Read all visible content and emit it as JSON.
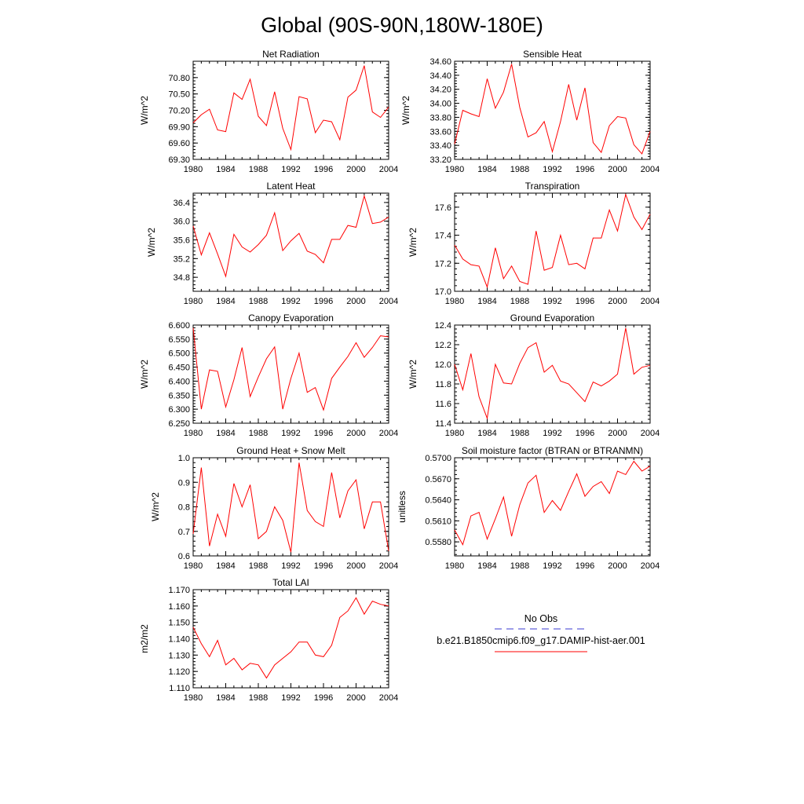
{
  "page": {
    "title": "Global (90S-90N,180W-180E)"
  },
  "legend": {
    "entries": [
      {
        "label": "No Obs",
        "color": "#3a3ad0",
        "dash": true
      },
      {
        "label": "b.e21.B1850cmip6.f09_g17.DAMIP-hist-aer.001",
        "color": "#ff0000",
        "dash": false
      }
    ]
  },
  "chart_data": [
    {
      "type": "line",
      "title": "Net Radiation",
      "xlabel": "",
      "ylabel": "W/m^2",
      "xlim": [
        1980,
        2004
      ],
      "ylim": [
        69.3,
        71.1
      ],
      "xticks": [
        "1980",
        "1984",
        "1988",
        "1992",
        "1996",
        "2000",
        "2004"
      ],
      "yticks": [
        "69.30",
        "69.60",
        "69.90",
        "70.20",
        "70.50",
        "70.80"
      ],
      "x": [
        1980,
        1981,
        1982,
        1983,
        1984,
        1985,
        1986,
        1987,
        1988,
        1989,
        1990,
        1991,
        1992,
        1993,
        1994,
        1995,
        1996,
        1997,
        1998,
        1999,
        2000,
        2001,
        2002,
        2003,
        2004
      ],
      "series": [
        {
          "color": "#ff0000",
          "values": [
            69.97,
            70.12,
            70.22,
            69.84,
            69.81,
            70.52,
            70.4,
            70.77,
            70.09,
            69.92,
            70.54,
            69.87,
            69.48,
            70.45,
            70.41,
            69.79,
            70.02,
            69.99,
            69.66,
            70.44,
            70.57,
            71.02,
            70.17,
            70.07,
            70.26
          ]
        }
      ]
    },
    {
      "type": "line",
      "title": "Sensible Heat",
      "xlabel": "",
      "ylabel": "W/m^2",
      "xlim": [
        1980,
        2004
      ],
      "ylim": [
        33.2,
        34.6
      ],
      "xticks": [
        "1980",
        "1984",
        "1988",
        "1992",
        "1996",
        "2000",
        "2004"
      ],
      "yticks": [
        "33.20",
        "33.40",
        "33.60",
        "33.80",
        "34.00",
        "34.20",
        "34.40",
        "34.60"
      ],
      "x": [
        1980,
        1981,
        1982,
        1983,
        1984,
        1985,
        1986,
        1987,
        1988,
        1989,
        1990,
        1991,
        1992,
        1993,
        1994,
        1995,
        1996,
        1997,
        1998,
        1999,
        2000,
        2001,
        2002,
        2003,
        2004
      ],
      "series": [
        {
          "color": "#ff0000",
          "values": [
            33.42,
            33.9,
            33.85,
            33.81,
            34.35,
            33.93,
            34.16,
            34.56,
            33.94,
            33.52,
            33.58,
            33.74,
            33.31,
            33.74,
            34.27,
            33.76,
            34.22,
            33.44,
            33.3,
            33.68,
            33.81,
            33.79,
            33.41,
            33.28,
            33.6
          ]
        }
      ]
    },
    {
      "type": "line",
      "title": "Latent Heat",
      "xlabel": "",
      "ylabel": "W/m^2",
      "xlim": [
        1980,
        2004
      ],
      "ylim": [
        34.5,
        36.6
      ],
      "xticks": [
        "1980",
        "1984",
        "1988",
        "1992",
        "1996",
        "2000",
        "2004"
      ],
      "yticks": [
        "34.8",
        "35.2",
        "35.6",
        "36.0",
        "36.4"
      ],
      "x": [
        1980,
        1981,
        1982,
        1983,
        1984,
        1985,
        1986,
        1987,
        1988,
        1989,
        1990,
        1991,
        1992,
        1993,
        1994,
        1995,
        1996,
        1997,
        1998,
        1999,
        2000,
        2001,
        2002,
        2003,
        2004
      ],
      "series": [
        {
          "color": "#ff0000",
          "values": [
            35.9,
            35.28,
            35.75,
            35.3,
            34.82,
            35.72,
            35.45,
            35.34,
            35.5,
            35.7,
            36.18,
            35.37,
            35.58,
            35.74,
            35.36,
            35.29,
            35.11,
            35.61,
            35.61,
            35.91,
            35.87,
            36.54,
            35.95,
            35.98,
            36.09
          ]
        }
      ]
    },
    {
      "type": "line",
      "title": "Transpiration",
      "xlabel": "",
      "ylabel": "W/m^2",
      "xlim": [
        1980,
        2004
      ],
      "ylim": [
        17.0,
        17.7
      ],
      "xticks": [
        "1980",
        "1984",
        "1988",
        "1992",
        "1996",
        "2000",
        "2004"
      ],
      "yticks": [
        "17.0",
        "17.2",
        "17.4",
        "17.6"
      ],
      "x": [
        1980,
        1981,
        1982,
        1983,
        1984,
        1985,
        1986,
        1987,
        1988,
        1989,
        1990,
        1991,
        1992,
        1993,
        1994,
        1995,
        1996,
        1997,
        1998,
        1999,
        2000,
        2001,
        2002,
        2003,
        2004
      ],
      "series": [
        {
          "color": "#ff0000",
          "values": [
            17.33,
            17.23,
            17.19,
            17.18,
            17.03,
            17.31,
            17.09,
            17.18,
            17.07,
            17.05,
            17.43,
            17.15,
            17.17,
            17.4,
            17.19,
            17.2,
            17.16,
            17.38,
            17.38,
            17.58,
            17.43,
            17.69,
            17.53,
            17.44,
            17.55
          ]
        }
      ]
    },
    {
      "type": "line",
      "title": "Canopy Evaporation",
      "xlabel": "",
      "ylabel": "W/m^2",
      "xlim": [
        1980,
        2004
      ],
      "ylim": [
        6.25,
        6.6
      ],
      "xticks": [
        "1980",
        "1984",
        "1988",
        "1992",
        "1996",
        "2000",
        "2004"
      ],
      "yticks": [
        "6.250",
        "6.300",
        "6.350",
        "6.400",
        "6.450",
        "6.500",
        "6.550",
        "6.600"
      ],
      "x": [
        1980,
        1981,
        1982,
        1983,
        1984,
        1985,
        1986,
        1987,
        1988,
        1989,
        1990,
        1991,
        1992,
        1993,
        1994,
        1995,
        1996,
        1997,
        1998,
        1999,
        2000,
        2001,
        2002,
        2003,
        2004
      ],
      "series": [
        {
          "color": "#ff0000",
          "values": [
            6.59,
            6.3,
            6.44,
            6.435,
            6.308,
            6.405,
            6.52,
            6.345,
            6.415,
            6.48,
            6.522,
            6.3,
            6.41,
            6.5,
            6.36,
            6.377,
            6.297,
            6.41,
            6.45,
            6.488,
            6.537,
            6.485,
            6.52,
            6.562,
            6.558
          ]
        }
      ]
    },
    {
      "type": "line",
      "title": "Ground Evaporation",
      "xlabel": "",
      "ylabel": "W/m^2",
      "xlim": [
        1980,
        2004
      ],
      "ylim": [
        11.4,
        12.4
      ],
      "xticks": [
        "1980",
        "1984",
        "1988",
        "1992",
        "1996",
        "2000",
        "2004"
      ],
      "yticks": [
        "11.4",
        "11.6",
        "11.8",
        "12.0",
        "12.2",
        "12.4"
      ],
      "x": [
        1980,
        1981,
        1982,
        1983,
        1984,
        1985,
        1986,
        1987,
        1988,
        1989,
        1990,
        1991,
        1992,
        1993,
        1994,
        1995,
        1996,
        1997,
        1998,
        1999,
        2000,
        2001,
        2002,
        2003,
        2004
      ],
      "series": [
        {
          "color": "#ff0000",
          "values": [
            12.0,
            11.74,
            12.11,
            11.67,
            11.45,
            12.0,
            11.81,
            11.8,
            12.01,
            12.17,
            12.22,
            11.92,
            11.99,
            11.83,
            11.8,
            11.71,
            11.62,
            11.82,
            11.78,
            11.83,
            11.9,
            12.37,
            11.9,
            11.97,
            11.99
          ]
        }
      ]
    },
    {
      "type": "line",
      "title": "Ground Heat + Snow Melt",
      "xlabel": "",
      "ylabel": "W/m^2",
      "xlim": [
        1980,
        2004
      ],
      "ylim": [
        0.6,
        1.0
      ],
      "xticks": [
        "1980",
        "1984",
        "1988",
        "1992",
        "1996",
        "2000",
        "2004"
      ],
      "yticks": [
        "0.6",
        "0.7",
        "0.8",
        "0.9",
        "1.0"
      ],
      "x": [
        1980,
        1981,
        1982,
        1983,
        1984,
        1985,
        1986,
        1987,
        1988,
        1989,
        1990,
        1991,
        1992,
        1993,
        1994,
        1995,
        1996,
        1997,
        1998,
        1999,
        2000,
        2001,
        2002,
        2003,
        2004
      ],
      "series": [
        {
          "color": "#ff0000",
          "values": [
            0.69,
            0.96,
            0.64,
            0.77,
            0.68,
            0.895,
            0.8,
            0.89,
            0.67,
            0.7,
            0.8,
            0.745,
            0.615,
            0.98,
            0.785,
            0.74,
            0.72,
            0.94,
            0.755,
            0.865,
            0.91,
            0.71,
            0.82,
            0.82,
            0.62
          ]
        }
      ]
    },
    {
      "type": "line",
      "title": "Soil moisture factor (BTRAN or BTRANMN)",
      "xlabel": "",
      "ylabel": "unitless",
      "xlim": [
        1980,
        2004
      ],
      "ylim": [
        0.556,
        0.57
      ],
      "xticks": [
        "1980",
        "1984",
        "1988",
        "1992",
        "1996",
        "2000",
        "2004"
      ],
      "yticks": [
        "0.5580",
        "0.5610",
        "0.5640",
        "0.5670",
        "0.5700"
      ],
      "x": [
        1980,
        1981,
        1982,
        1983,
        1984,
        1985,
        1986,
        1987,
        1988,
        1989,
        1990,
        1991,
        1992,
        1993,
        1994,
        1995,
        1996,
        1997,
        1998,
        1999,
        2000,
        2001,
        2002,
        2003,
        2004
      ],
      "series": [
        {
          "color": "#ff0000",
          "values": [
            0.5597,
            0.5576,
            0.5617,
            0.5622,
            0.5584,
            0.5613,
            0.5644,
            0.5588,
            0.5633,
            0.5664,
            0.5675,
            0.5622,
            0.5639,
            0.5625,
            0.5652,
            0.5677,
            0.5645,
            0.5659,
            0.5666,
            0.5649,
            0.5681,
            0.5676,
            0.5695,
            0.5681,
            0.5688
          ]
        }
      ]
    },
    {
      "type": "line",
      "title": "Total LAI",
      "xlabel": "",
      "ylabel": "m2/m2",
      "xlim": [
        1980,
        2004
      ],
      "ylim": [
        1.11,
        1.17
      ],
      "xticks": [
        "1980",
        "1984",
        "1988",
        "1992",
        "1996",
        "2000",
        "2004"
      ],
      "yticks": [
        "1.110",
        "1.120",
        "1.130",
        "1.140",
        "1.150",
        "1.160",
        "1.170"
      ],
      "x": [
        1980,
        1981,
        1982,
        1983,
        1984,
        1985,
        1986,
        1987,
        1988,
        1989,
        1990,
        1991,
        1992,
        1993,
        1994,
        1995,
        1996,
        1997,
        1998,
        1999,
        2000,
        2001,
        2002,
        2003,
        2004
      ],
      "series": [
        {
          "color": "#ff0000",
          "values": [
            1.147,
            1.137,
            1.129,
            1.139,
            1.124,
            1.128,
            1.121,
            1.125,
            1.124,
            1.116,
            1.124,
            1.128,
            1.132,
            1.138,
            1.138,
            1.13,
            1.129,
            1.136,
            1.153,
            1.157,
            1.165,
            1.155,
            1.163,
            1.161,
            1.16
          ]
        }
      ]
    }
  ]
}
